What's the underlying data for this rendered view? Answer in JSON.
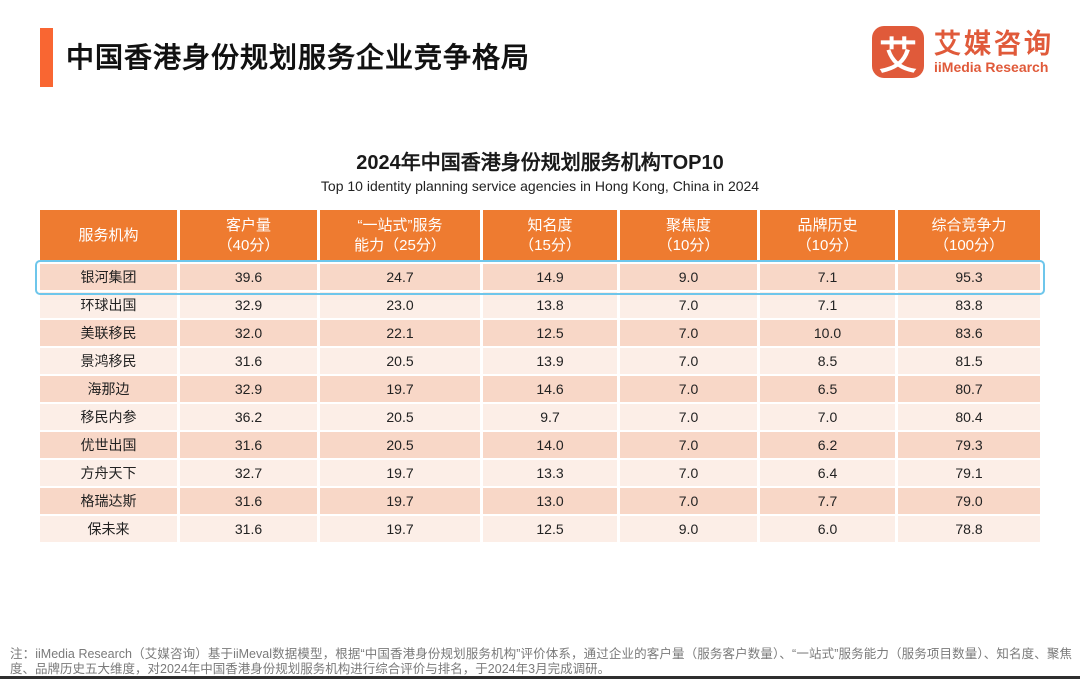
{
  "page": {
    "title": "中国香港身份规划服务企业竞争格局",
    "logo": {
      "icon_char": "艾",
      "name_cn": "艾媒咨询",
      "name_en": "iiMedia Research"
    },
    "note": "注：iiMedia Research（艾媒咨询）基于iiMeval数据模型，根据“中国香港身份规划服务机构”评价体系，通过企业的客户量（服务客户数量）、“一站式”服务能力（服务项目数量）、知名度、聚焦度、品牌历史五大维度，对2024年中国香港身份规划服务机构进行综合评价与排名，于2024年3月完成调研。"
  },
  "colors": {
    "accent_orange": "#F96632",
    "table_header_orange": "#EE7B30",
    "row_dark_pink": "#F8D7C7",
    "row_light_pink": "#FCEEE7",
    "highlight_blue": "#6EC6EB",
    "logo_orange": "#E05A3A",
    "note_gray": "#7A7A7A"
  },
  "chart_data": {
    "type": "table",
    "title": "2024年中国香港身份规划服务机构TOP10",
    "subtitle": "Top 10 identity planning service agencies in Hong Kong, China in 2024",
    "columns": [
      "服务机构",
      "客户量（40分）",
      "“一站式”服务能力（25分）",
      "知名度（15分）",
      "聚焦度（10分）",
      "品牌历史（10分）",
      "综合竞争力（100分）"
    ],
    "columns_display": [
      "服务机构",
      "客户量\n（40分）",
      "“一站式”服务\n能力（25分）",
      "知名度\n（15分）",
      "聚焦度\n（10分）",
      "品牌历史\n（10分）",
      "综合竞争力\n（100分）"
    ],
    "rows": [
      [
        "银河集团",
        "39.6",
        "24.7",
        "14.9",
        "9.0",
        "7.1",
        "95.3"
      ],
      [
        "环球出国",
        "32.9",
        "23.0",
        "13.8",
        "7.0",
        "7.1",
        "83.8"
      ],
      [
        "美联移民",
        "32.0",
        "22.1",
        "12.5",
        "7.0",
        "10.0",
        "83.6"
      ],
      [
        "景鸿移民",
        "31.6",
        "20.5",
        "13.9",
        "7.0",
        "8.5",
        "81.5"
      ],
      [
        "海那边",
        "32.9",
        "19.7",
        "14.6",
        "7.0",
        "6.5",
        "80.7"
      ],
      [
        "移民内参",
        "36.2",
        "20.5",
        "9.7",
        "7.0",
        "7.0",
        "80.4"
      ],
      [
        "优世出国",
        "31.6",
        "20.5",
        "14.0",
        "7.0",
        "6.2",
        "79.3"
      ],
      [
        "方舟天下",
        "32.7",
        "19.7",
        "13.3",
        "7.0",
        "6.4",
        "79.1"
      ],
      [
        "格瑞达斯",
        "31.6",
        "19.7",
        "13.0",
        "7.0",
        "7.7",
        "79.0"
      ],
      [
        "保未来",
        "31.6",
        "19.7",
        "12.5",
        "9.0",
        "6.0",
        "78.8"
      ]
    ],
    "highlighted_row_index": 0,
    "highlighted_row": "银河集团"
  }
}
